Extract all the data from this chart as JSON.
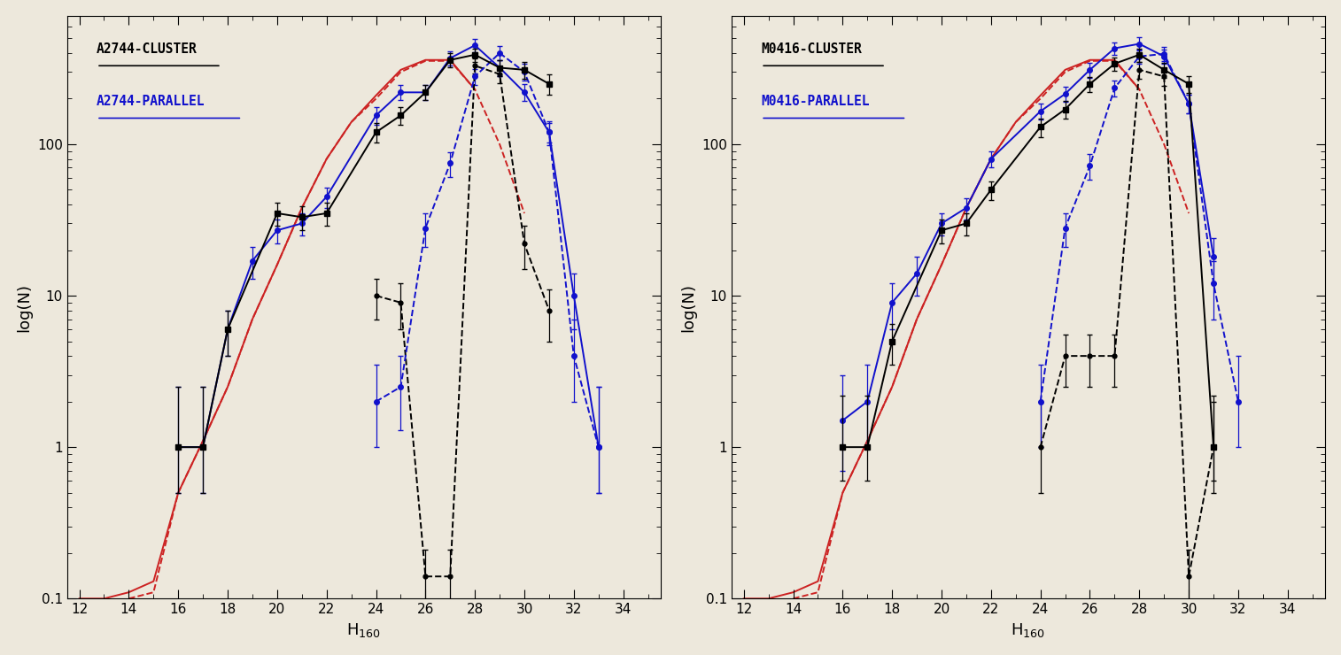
{
  "panel_left": {
    "title": "A2744-CLUSTER",
    "title_parallel": "A2744-PARALLEL",
    "black_solid_x": [
      16,
      17,
      18,
      20,
      21,
      22,
      24,
      25,
      26,
      27,
      28,
      29,
      30,
      31
    ],
    "black_solid_y": [
      1.0,
      1.0,
      6.0,
      35.0,
      33.0,
      35.0,
      120.0,
      155.0,
      220.0,
      360.0,
      390.0,
      320.0,
      310.0,
      250.0
    ],
    "black_solid_yerr_lo": [
      0.5,
      0.5,
      2.0,
      6.0,
      6.0,
      6.0,
      18.0,
      20.0,
      25.0,
      38.0,
      40.0,
      38.0,
      38.0,
      38.0
    ],
    "black_solid_yerr_hi": [
      1.5,
      1.5,
      2.0,
      6.0,
      6.0,
      6.0,
      18.0,
      20.0,
      25.0,
      38.0,
      40.0,
      38.0,
      38.0,
      38.0
    ],
    "blue_solid_x": [
      16,
      17,
      18,
      19,
      20,
      21,
      22,
      24,
      25,
      26,
      27,
      28,
      29,
      30,
      31,
      32,
      33
    ],
    "blue_solid_y": [
      1.0,
      1.0,
      6.0,
      17.0,
      27.0,
      30.0,
      45.0,
      155.0,
      220.0,
      220.0,
      370.0,
      450.0,
      320.0,
      220.0,
      120.0,
      10.0,
      1.0
    ],
    "blue_solid_yerr_lo": [
      0.5,
      0.5,
      2.0,
      4.0,
      5.0,
      5.0,
      7.0,
      20.0,
      25.0,
      25.0,
      38.0,
      45.0,
      38.0,
      28.0,
      18.0,
      4.0,
      0.5
    ],
    "blue_solid_yerr_hi": [
      1.5,
      1.5,
      2.0,
      4.0,
      5.0,
      5.0,
      7.0,
      20.0,
      25.0,
      25.0,
      38.0,
      45.0,
      38.0,
      28.0,
      18.0,
      4.0,
      1.5
    ],
    "black_dashed_x": [
      24,
      25,
      26,
      27,
      28,
      29,
      30,
      31
    ],
    "black_dashed_y": [
      10.0,
      9.0,
      0.14,
      0.14,
      330.0,
      290.0,
      22.0,
      8.0
    ],
    "black_dashed_yerr_lo": [
      3.0,
      3.0,
      0.07,
      0.07,
      38.0,
      36.0,
      7.0,
      3.0
    ],
    "black_dashed_yerr_hi": [
      3.0,
      3.0,
      0.07,
      0.07,
      38.0,
      36.0,
      7.0,
      3.0
    ],
    "blue_dashed_x": [
      24,
      25,
      26,
      27,
      28,
      29,
      30,
      31,
      32,
      33
    ],
    "blue_dashed_y": [
      2.0,
      2.5,
      28.0,
      75.0,
      280.0,
      400.0,
      300.0,
      120.0,
      4.0,
      1.0
    ],
    "blue_dashed_yerr_lo": [
      1.0,
      1.2,
      7.0,
      14.0,
      33.0,
      42.0,
      38.0,
      22.0,
      2.0,
      0.5
    ],
    "blue_dashed_yerr_hi": [
      1.5,
      1.5,
      7.0,
      14.0,
      33.0,
      42.0,
      38.0,
      22.0,
      3.0,
      1.5
    ],
    "red_solid_x": [
      12.0,
      13.0,
      14.0,
      15.0,
      16.0,
      17.0,
      18.0,
      19.0,
      20.0,
      21.0,
      22.0,
      23.0,
      24.0,
      25.0,
      26.0,
      27.0,
      28.0
    ],
    "red_solid_y": [
      0.1,
      0.1,
      0.11,
      0.13,
      0.5,
      1.1,
      2.5,
      7.0,
      16.0,
      38.0,
      80.0,
      140.0,
      210.0,
      310.0,
      360.0,
      360.0,
      230.0
    ],
    "red_dashed_x": [
      14.0,
      15.0,
      16.0,
      17.0,
      18.0,
      19.0,
      20.0,
      21.0,
      22.0,
      23.0,
      24.0,
      25.0,
      26.0,
      27.0,
      28.0,
      29.0,
      30.0
    ],
    "red_dashed_y": [
      0.1,
      0.11,
      0.5,
      1.1,
      2.5,
      7.0,
      16.0,
      38.0,
      80.0,
      140.0,
      200.0,
      300.0,
      355.0,
      355.0,
      230.0,
      100.0,
      35.0
    ]
  },
  "panel_right": {
    "title": "M0416-CLUSTER",
    "title_parallel": "M0416-PARALLEL",
    "black_solid_x": [
      16,
      17,
      18,
      20,
      21,
      22,
      24,
      25,
      26,
      27,
      28,
      29,
      30,
      31
    ],
    "black_solid_y": [
      1.0,
      1.0,
      5.0,
      27.0,
      30.0,
      50.0,
      130.0,
      170.0,
      250.0,
      340.0,
      390.0,
      310.0,
      250.0,
      1.0
    ],
    "black_solid_yerr_lo": [
      0.4,
      0.4,
      1.5,
      5.0,
      5.0,
      7.0,
      18.0,
      22.0,
      28.0,
      36.0,
      40.0,
      36.0,
      32.0,
      0.4
    ],
    "black_solid_yerr_hi": [
      1.2,
      1.2,
      1.5,
      5.0,
      5.0,
      7.0,
      18.0,
      22.0,
      28.0,
      36.0,
      40.0,
      36.0,
      32.0,
      1.2
    ],
    "blue_solid_x": [
      16,
      17,
      18,
      19,
      20,
      21,
      22,
      24,
      25,
      26,
      27,
      28,
      29,
      30,
      31
    ],
    "blue_solid_y": [
      1.5,
      2.0,
      9.0,
      14.0,
      30.0,
      38.0,
      80.0,
      165.0,
      215.0,
      310.0,
      430.0,
      460.0,
      380.0,
      185.0,
      18.0
    ],
    "blue_solid_yerr_lo": [
      0.8,
      1.0,
      3.0,
      4.0,
      5.0,
      6.0,
      10.0,
      20.0,
      25.0,
      35.0,
      42.0,
      46.0,
      40.0,
      26.0,
      6.0
    ],
    "blue_solid_yerr_hi": [
      1.5,
      1.5,
      3.0,
      4.0,
      5.0,
      6.0,
      10.0,
      20.0,
      25.0,
      35.0,
      42.0,
      46.0,
      40.0,
      26.0,
      6.0
    ],
    "black_dashed_x": [
      24,
      25,
      26,
      27,
      28,
      29,
      30,
      31
    ],
    "black_dashed_y": [
      1.0,
      4.0,
      4.0,
      4.0,
      310.0,
      280.0,
      0.14,
      1.0
    ],
    "black_dashed_yerr_lo": [
      0.5,
      1.5,
      1.5,
      1.5,
      38.0,
      36.0,
      0.07,
      0.5
    ],
    "black_dashed_yerr_hi": [
      1.0,
      1.5,
      1.5,
      1.5,
      38.0,
      36.0,
      0.07,
      1.0
    ],
    "blue_dashed_x": [
      24,
      25,
      26,
      27,
      28,
      29,
      30,
      31,
      32
    ],
    "blue_dashed_y": [
      2.0,
      28.0,
      72.0,
      235.0,
      380.0,
      395.0,
      185.0,
      12.0,
      2.0
    ],
    "blue_dashed_yerr_lo": [
      1.0,
      7.0,
      14.0,
      28.0,
      40.0,
      42.0,
      26.0,
      5.0,
      1.0
    ],
    "blue_dashed_yerr_hi": [
      1.5,
      7.0,
      14.0,
      28.0,
      40.0,
      42.0,
      26.0,
      5.0,
      2.0
    ],
    "red_solid_x": [
      12.0,
      13.0,
      14.0,
      15.0,
      16.0,
      17.0,
      18.0,
      19.0,
      20.0,
      21.0,
      22.0,
      23.0,
      24.0,
      25.0,
      26.0,
      27.0,
      28.0
    ],
    "red_solid_y": [
      0.1,
      0.1,
      0.11,
      0.13,
      0.5,
      1.1,
      2.5,
      7.0,
      16.0,
      38.0,
      80.0,
      140.0,
      210.0,
      310.0,
      360.0,
      360.0,
      230.0
    ],
    "red_dashed_x": [
      14.0,
      15.0,
      16.0,
      17.0,
      18.0,
      19.0,
      20.0,
      21.0,
      22.0,
      23.0,
      24.0,
      25.0,
      26.0,
      27.0,
      28.0,
      29.0,
      30.0
    ],
    "red_dashed_y": [
      0.1,
      0.11,
      0.5,
      1.1,
      2.5,
      7.0,
      16.0,
      38.0,
      80.0,
      140.0,
      200.0,
      300.0,
      355.0,
      355.0,
      230.0,
      100.0,
      35.0
    ]
  },
  "xlim": [
    11.5,
    35.5
  ],
  "ylim": [
    0.1,
    700
  ],
  "xlabel": "H$_{160}$",
  "ylabel": "log(N)",
  "black_color": "#000000",
  "blue_color": "#1111cc",
  "red_color": "#cc2222",
  "bg_color": "#ede8dc",
  "marker_size": 4,
  "lw": 1.4,
  "capsize": 2,
  "elinewidth": 0.9
}
